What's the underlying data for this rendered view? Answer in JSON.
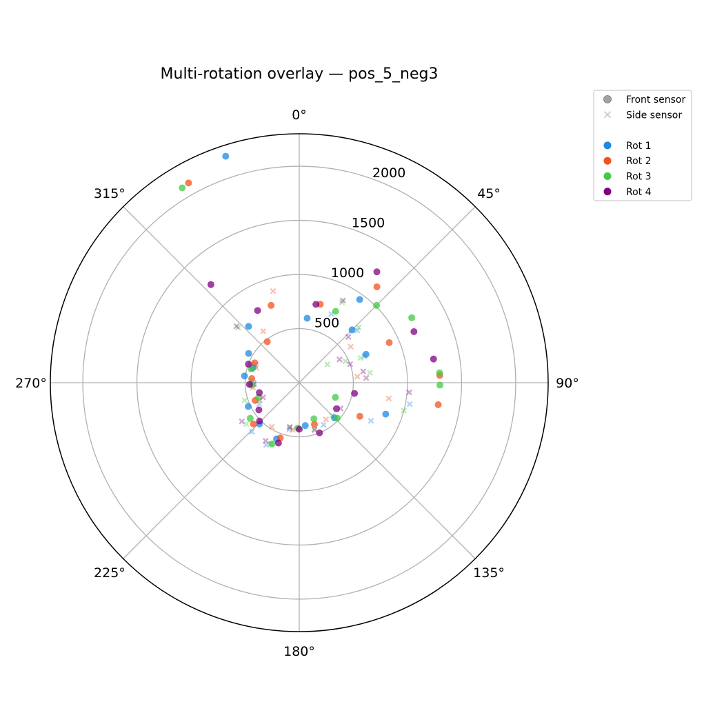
{
  "chart_data": {
    "type": "scatter",
    "projection": "polar",
    "title": "Multi-rotation overlay — pos_5_neg3",
    "theta_direction": "clockwise",
    "theta_zero": "top",
    "theta_ticks": [
      "0°",
      "45°",
      "90°",
      "135°",
      "180°",
      "225°",
      "270°",
      "315°"
    ],
    "r_ticks": [
      500,
      1000,
      1500,
      2000
    ],
    "r_tick_labels": [
      "500",
      "1000",
      "1500",
      "2000"
    ],
    "rlim": [
      0,
      2300
    ],
    "grid": true,
    "legend": {
      "placement": "upper-right outside",
      "marker_entries": [
        {
          "label": "Front sensor",
          "marker": "circle",
          "color": "#999999"
        },
        {
          "label": "Side sensor",
          "marker": "x",
          "color": "#cccccc"
        }
      ],
      "series_entries": [
        {
          "label": "Rot 1",
          "color": "#1e88e5"
        },
        {
          "label": "Rot 2",
          "color": "#f4511e"
        },
        {
          "label": "Rot 3",
          "color": "#43c943"
        },
        {
          "label": "Rot 4",
          "color": "#800080"
        }
      ]
    },
    "series": [
      {
        "name": "Rot 1",
        "color": "#1e88e5",
        "front": [
          [
            342,
            2200
          ],
          [
            7,
            600
          ],
          [
            36,
            950
          ],
          [
            45,
            690
          ],
          [
            67,
            670
          ],
          [
            110,
            850
          ],
          [
            135,
            460
          ],
          [
            172,
            400
          ],
          [
            202,
            560
          ],
          [
            224,
            530
          ],
          [
            245,
            520
          ],
          [
            277,
            510
          ],
          [
            288,
            450
          ],
          [
            300,
            540
          ],
          [
            318,
            700
          ]
        ],
        "side": [
          [
            25,
            700
          ],
          [
            48,
            720
          ],
          [
            68,
            650
          ],
          [
            101,
            1040
          ],
          [
            118,
            750
          ],
          [
            150,
            450
          ],
          [
            192,
            440
          ],
          [
            208,
            650
          ],
          [
            224,
            630
          ],
          [
            242,
            420
          ],
          [
            270,
            420
          ],
          [
            292,
            440
          ]
        ]
      },
      {
        "name": "Rot 2",
        "color": "#f4511e",
        "front": [
          [
            331,
            2110
          ],
          [
            15,
            750
          ],
          [
            39,
            1140
          ],
          [
            66,
            910
          ],
          [
            87,
            1300
          ],
          [
            99,
            1300
          ],
          [
            119,
            640
          ],
          [
            160,
            410
          ],
          [
            199,
            540
          ],
          [
            228,
            570
          ],
          [
            248,
            440
          ],
          [
            275,
            440
          ],
          [
            294,
            450
          ],
          [
            322,
            480
          ],
          [
            340,
            760
          ]
        ],
        "side": [
          [
            55,
            580
          ],
          [
            84,
            540
          ],
          [
            100,
            840
          ],
          [
            144,
            420
          ],
          [
            188,
            440
          ],
          [
            212,
            480
          ],
          [
            246,
            400
          ],
          [
            264,
            430
          ],
          [
            289,
            420
          ],
          [
            325,
            580
          ],
          [
            344,
            880
          ]
        ]
      },
      {
        "name": "Rot 3",
        "color": "#43c943",
        "front": [
          [
            329,
            2100
          ],
          [
            27,
            740
          ],
          [
            45,
            1010
          ],
          [
            60,
            1200
          ],
          [
            86,
            1300
          ],
          [
            91,
            1300
          ],
          [
            112,
            360
          ],
          [
            133,
            480
          ],
          [
            158,
            360
          ],
          [
            182,
            420
          ],
          [
            204,
            620
          ],
          [
            234,
            560
          ],
          [
            250,
            400
          ],
          [
            267,
            440
          ],
          [
            286,
            460
          ]
        ],
        "side": [
          [
            28,
            840
          ],
          [
            47,
            750
          ],
          [
            57,
            310
          ],
          [
            65,
            470
          ],
          [
            68,
            610
          ],
          [
            82,
            660
          ],
          [
            105,
            1000
          ],
          [
            135,
            430
          ],
          [
            162,
            450
          ],
          [
            192,
            420
          ],
          [
            205,
            620
          ],
          [
            232,
            620
          ],
          [
            252,
            530
          ],
          [
            272,
            450
          ],
          [
            292,
            480
          ],
          [
            312,
            760
          ]
        ]
      },
      {
        "name": "Rot 4",
        "color": "#800080",
        "front": [
          [
            318,
            1220
          ],
          [
            12,
            740
          ],
          [
            35,
            1250
          ],
          [
            66,
            1160
          ],
          [
            80,
            1260
          ],
          [
            101,
            520
          ],
          [
            125,
            420
          ],
          [
            158,
            500
          ],
          [
            180,
            430
          ],
          [
            199,
            590
          ],
          [
            226,
            510
          ],
          [
            236,
            450
          ],
          [
            256,
            380
          ],
          [
            268,
            460
          ],
          [
            290,
            500
          ],
          [
            330,
            770
          ]
        ],
        "side": [
          [
            28,
            860
          ],
          [
            47,
            620
          ],
          [
            60,
            430
          ],
          [
            70,
            500
          ],
          [
            80,
            600
          ],
          [
            86,
            620
          ],
          [
            95,
            1020
          ],
          [
            122,
            450
          ],
          [
            162,
            460
          ],
          [
            192,
            420
          ],
          [
            210,
            620
          ],
          [
            236,
            640
          ],
          [
            248,
            360
          ],
          [
            268,
            420
          ],
          [
            286,
            460
          ],
          [
            312,
            780
          ]
        ]
      }
    ]
  }
}
